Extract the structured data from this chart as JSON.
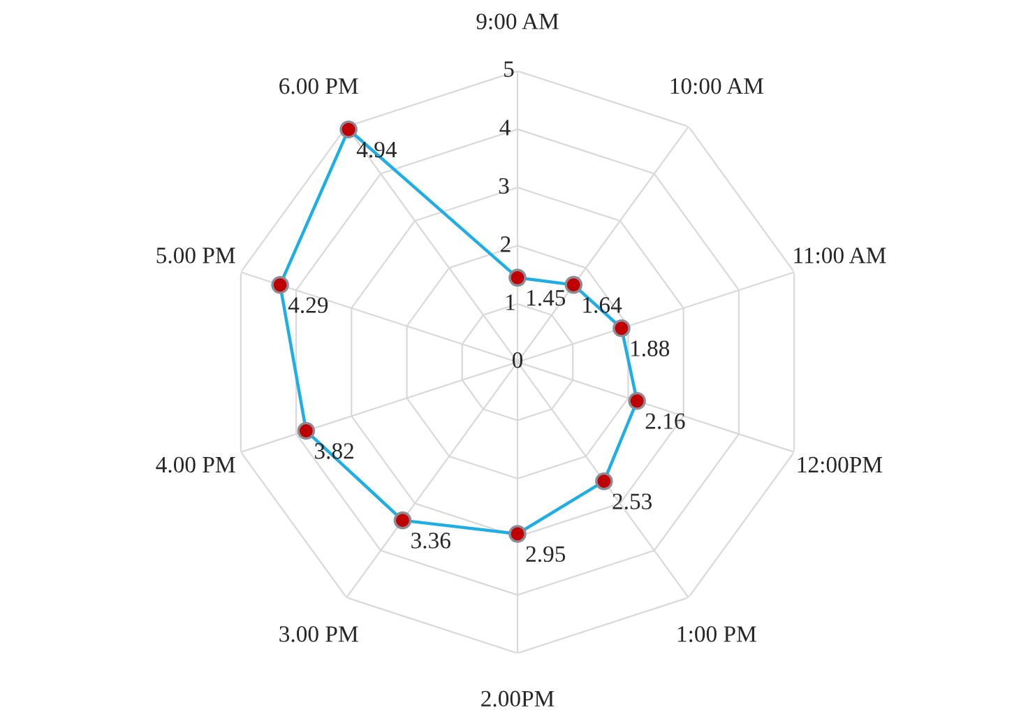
{
  "chart_data": {
    "type": "radar",
    "categories": [
      "9:00 AM",
      "10:00 AM",
      "11:00 AM",
      "12:00PM",
      "1:00 PM",
      "2.00PM",
      "3.00 PM",
      "4.00 PM",
      "5.00 PM",
      "6.00 PM"
    ],
    "series": [
      {
        "color": "#1eaee6",
        "values": [
          1.45,
          1.64,
          1.88,
          2.16,
          2.53,
          2.95,
          3.36,
          3.82,
          4.29,
          4.94
        ]
      }
    ],
    "ylim": [
      0,
      5
    ],
    "yticks": [
      0,
      1,
      2,
      3,
      4,
      5
    ],
    "grid": true,
    "marker": "circle",
    "line_style": "solid",
    "data_labels": true
  }
}
